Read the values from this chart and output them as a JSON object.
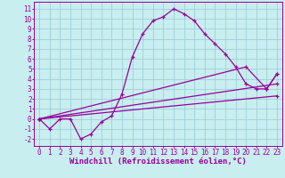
{
  "title": "",
  "xlabel": "Windchill (Refroidissement éolien,°C)",
  "xlim": [
    -0.5,
    23.5
  ],
  "ylim": [
    -2.7,
    11.7
  ],
  "xticks": [
    0,
    1,
    2,
    3,
    4,
    5,
    6,
    7,
    8,
    9,
    10,
    11,
    12,
    13,
    14,
    15,
    16,
    17,
    18,
    19,
    20,
    21,
    22,
    23
  ],
  "yticks": [
    -2,
    -1,
    0,
    1,
    2,
    3,
    4,
    5,
    6,
    7,
    8,
    9,
    10,
    11
  ],
  "bg_color": "#c8eef0",
  "grid_color": "#a0d0d8",
  "line_color": "#990099",
  "line1_x": [
    0,
    1,
    2,
    3,
    4,
    5,
    6,
    7,
    8,
    9,
    10,
    11,
    12,
    13,
    14,
    15,
    16,
    17,
    18,
    19,
    20,
    21,
    22,
    23
  ],
  "line1_y": [
    0.0,
    -1.0,
    0.0,
    0.0,
    -2.0,
    -1.5,
    -0.3,
    0.3,
    2.5,
    6.2,
    8.5,
    9.8,
    10.2,
    11.0,
    10.5,
    9.8,
    8.5,
    7.5,
    6.5,
    5.2,
    3.5,
    3.0,
    3.0,
    4.5
  ],
  "line2_x": [
    0,
    23
  ],
  "line2_y": [
    0.0,
    2.3
  ],
  "line3_x": [
    0,
    23
  ],
  "line3_y": [
    0.0,
    3.5
  ],
  "line4_x": [
    0,
    20,
    22,
    23
  ],
  "line4_y": [
    0.0,
    5.2,
    3.0,
    4.5
  ],
  "tick_fontsize": 5.5,
  "xlabel_fontsize": 6.5
}
